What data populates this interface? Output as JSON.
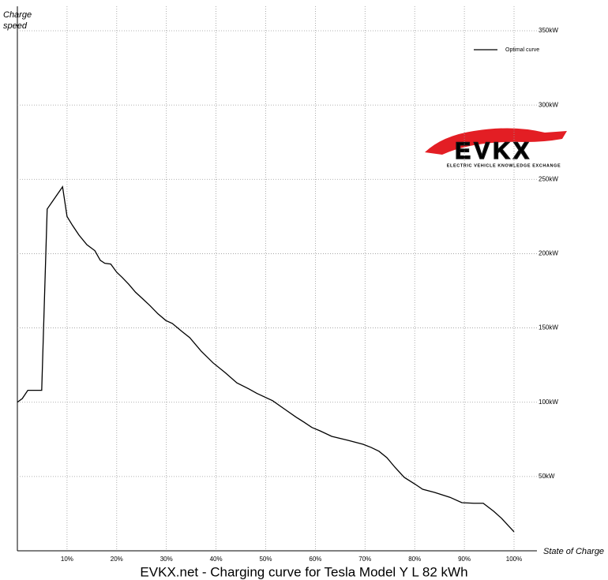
{
  "chart_data": {
    "type": "line",
    "title": "EVKX.net - Charging curve for Tesla Model Y L 82 kWh",
    "x_label": "State of Charge",
    "y_label": "Charge speed",
    "annotations": [
      "EVKX",
      "ELECTRIC VEHICLE KNOWLEDGE EXCHANGE"
    ],
    "x": [
      0,
      1,
      2.1,
      4.9,
      6,
      9.1,
      10,
      11.1,
      12.4,
      14,
      15.6,
      16.7,
      17.6,
      18.8,
      20,
      21.1,
      22.4,
      23.8,
      25.1,
      26.7,
      28.3,
      29.9,
      31.2,
      33.1,
      34.7,
      37,
      39.4,
      41.8,
      44.2,
      46.6,
      48.2,
      51.4,
      53.7,
      56.1,
      57.7,
      59.3,
      60.9,
      63.3,
      66.5,
      69.6,
      71.2,
      72.8,
      74.4,
      76,
      77.9,
      80,
      81.6,
      84,
      87.1,
      89.5,
      91.9,
      93.8,
      95.9,
      97.5,
      100
    ],
    "series": [
      {
        "name": "Optimal curve",
        "color": "#000000",
        "values": [
          100,
          102.5,
          108,
          108,
          230,
          245,
          225,
          219,
          212.5,
          206,
          202,
          195.5,
          193.5,
          193,
          187.5,
          184,
          179.5,
          174,
          170,
          165,
          159.5,
          155,
          153,
          147.7,
          143.5,
          134.4,
          126.5,
          120,
          113,
          109,
          106,
          101,
          95.6,
          90,
          86.6,
          83,
          80.8,
          77,
          74.4,
          71.7,
          69.6,
          67,
          62.7,
          56.3,
          49.4,
          45,
          41.4,
          39.3,
          36,
          32.4,
          32,
          32,
          26.6,
          21.8,
          12.8
        ]
      }
    ],
    "xlim": [
      0,
      100
    ],
    "xticks": [
      {
        "value": 10,
        "label": "10%"
      },
      {
        "value": 20,
        "label": "20%"
      },
      {
        "value": 30,
        "label": "30%"
      },
      {
        "value": 40,
        "label": "40%"
      },
      {
        "value": 50,
        "label": "50%"
      },
      {
        "value": 60,
        "label": "60%"
      },
      {
        "value": 70,
        "label": "70%"
      },
      {
        "value": 80,
        "label": "80%"
      },
      {
        "value": 90,
        "label": "90%"
      },
      {
        "value": 100,
        "label": "100%"
      }
    ],
    "ylim": [
      0,
      350
    ],
    "yticks": [
      {
        "value": 50,
        "label": "50kW"
      },
      {
        "value": 100,
        "label": "100kW"
      },
      {
        "value": 150,
        "label": "150kW"
      },
      {
        "value": 200,
        "label": "200kW"
      },
      {
        "value": 250,
        "label": "250kW"
      },
      {
        "value": 300,
        "label": "300kW"
      },
      {
        "value": 350,
        "label": "350kW"
      }
    ],
    "grid": true,
    "legend": "top-right"
  }
}
